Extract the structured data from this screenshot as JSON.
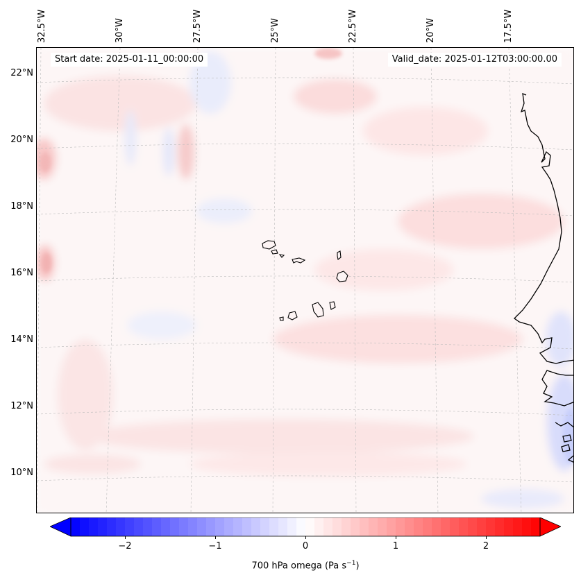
{
  "header": {
    "start_date": "Start date: 2025-01-11_00:00:00",
    "valid_date": "Valid_date: 2025-01-12T03:00:00.00"
  },
  "longitude_labels": [
    "32.5°W",
    "30°W",
    "27.5°W",
    "25°W",
    "22.5°W",
    "20°W",
    "17.5°W"
  ],
  "latitude_labels": [
    "22°N",
    "20°N",
    "18°N",
    "16°N",
    "14°N",
    "12°N",
    "10°N"
  ],
  "colorbar": {
    "label_prefix": "700 hPa omega (Pa s",
    "label_exp": "−1",
    "label_suffix": ")",
    "ticks": [
      "−2",
      "−1",
      "0",
      "1",
      "2"
    ],
    "min": -2.6,
    "max": 2.6,
    "colors": {
      "negative": "#0000ff",
      "zero": "#ffffff",
      "positive": "#ff0000"
    }
  },
  "map": {
    "field": "700 hPa omega",
    "colors": {
      "coast": "#000000",
      "gridline": "#bbbbbb"
    }
  }
}
